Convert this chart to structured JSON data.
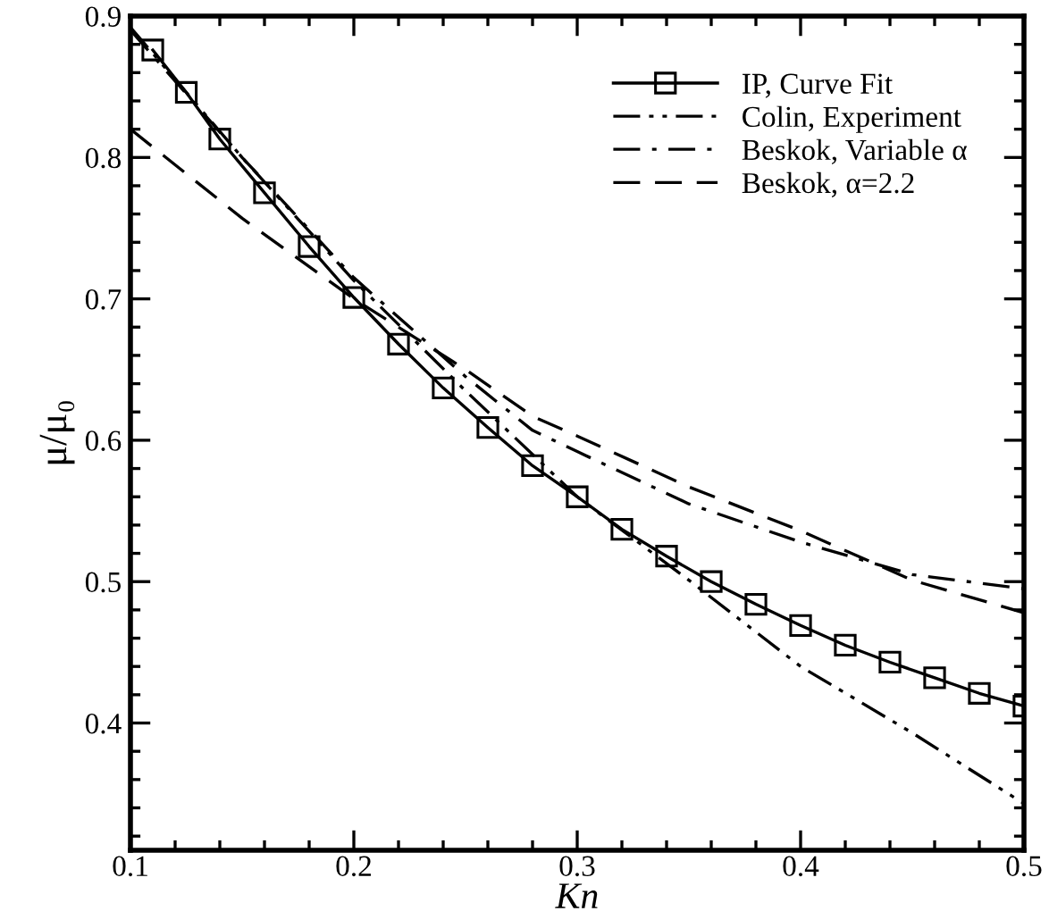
{
  "chart_data": {
    "type": "line",
    "xlabel": "Kn",
    "ylabel": "μ/μ₀",
    "xlim": [
      0.1,
      0.5
    ],
    "ylim": [
      0.31,
      0.9
    ],
    "xticks": [
      {
        "value": 0.1,
        "label": "0.1"
      },
      {
        "value": 0.2,
        "label": "0.2"
      },
      {
        "value": 0.3,
        "label": "0.3"
      },
      {
        "value": 0.4,
        "label": "0.4"
      },
      {
        "value": 0.5,
        "label": "0.5"
      }
    ],
    "yticks": [
      {
        "value": 0.4,
        "label": "0.4"
      },
      {
        "value": 0.5,
        "label": "0.5"
      },
      {
        "value": 0.6,
        "label": "0.6"
      },
      {
        "value": 0.7,
        "label": "0.7"
      },
      {
        "value": 0.8,
        "label": "0.8"
      },
      {
        "value": 0.9,
        "label": "0.9"
      }
    ],
    "grid": false,
    "legend": "top right",
    "series": [
      {
        "name": "IP, Curve Fit",
        "color": "#000000",
        "marker": "square",
        "line_style": "solid",
        "x": [
          0.11,
          0.125,
          0.14,
          0.16,
          0.18,
          0.2,
          0.22,
          0.24,
          0.26,
          0.28,
          0.3,
          0.32,
          0.34,
          0.36,
          0.38,
          0.4,
          0.42,
          0.44,
          0.46,
          0.48,
          0.5
        ],
        "values": [
          0.876,
          0.846,
          0.813,
          0.775,
          0.737,
          0.701,
          0.668,
          0.637,
          0.609,
          0.582,
          0.56,
          0.537,
          0.518,
          0.5,
          0.484,
          0.469,
          0.455,
          0.443,
          0.432,
          0.421,
          0.412
        ]
      },
      {
        "name": "Colin, Experiment",
        "color": "#000000",
        "marker": "none",
        "line_style": "dashdotdot",
        "x": [
          0.1,
          0.15,
          0.2,
          0.25,
          0.3,
          0.35,
          0.4,
          0.45,
          0.5
        ],
        "values": [
          0.892,
          0.8,
          0.713,
          0.635,
          0.56,
          0.501,
          0.44,
          0.393,
          0.343
        ]
      },
      {
        "name": "Beskok, Variable α",
        "color": "#000000",
        "marker": "none",
        "line_style": "dashdot",
        "x": [
          0.1,
          0.15,
          0.2,
          0.25,
          0.28,
          0.3,
          0.35,
          0.4,
          0.45,
          0.5
        ],
        "values": [
          0.89,
          0.8,
          0.715,
          0.645,
          0.607,
          0.592,
          0.555,
          0.528,
          0.505,
          0.495
        ]
      },
      {
        "name": "Beskok, α=2.2",
        "color": "#000000",
        "marker": "none",
        "line_style": "dashed",
        "x": [
          0.1,
          0.15,
          0.2,
          0.25,
          0.28,
          0.3,
          0.35,
          0.4,
          0.45,
          0.5
        ],
        "values": [
          0.82,
          0.757,
          0.7,
          0.65,
          0.617,
          0.603,
          0.567,
          0.536,
          0.501,
          0.478
        ]
      }
    ]
  }
}
